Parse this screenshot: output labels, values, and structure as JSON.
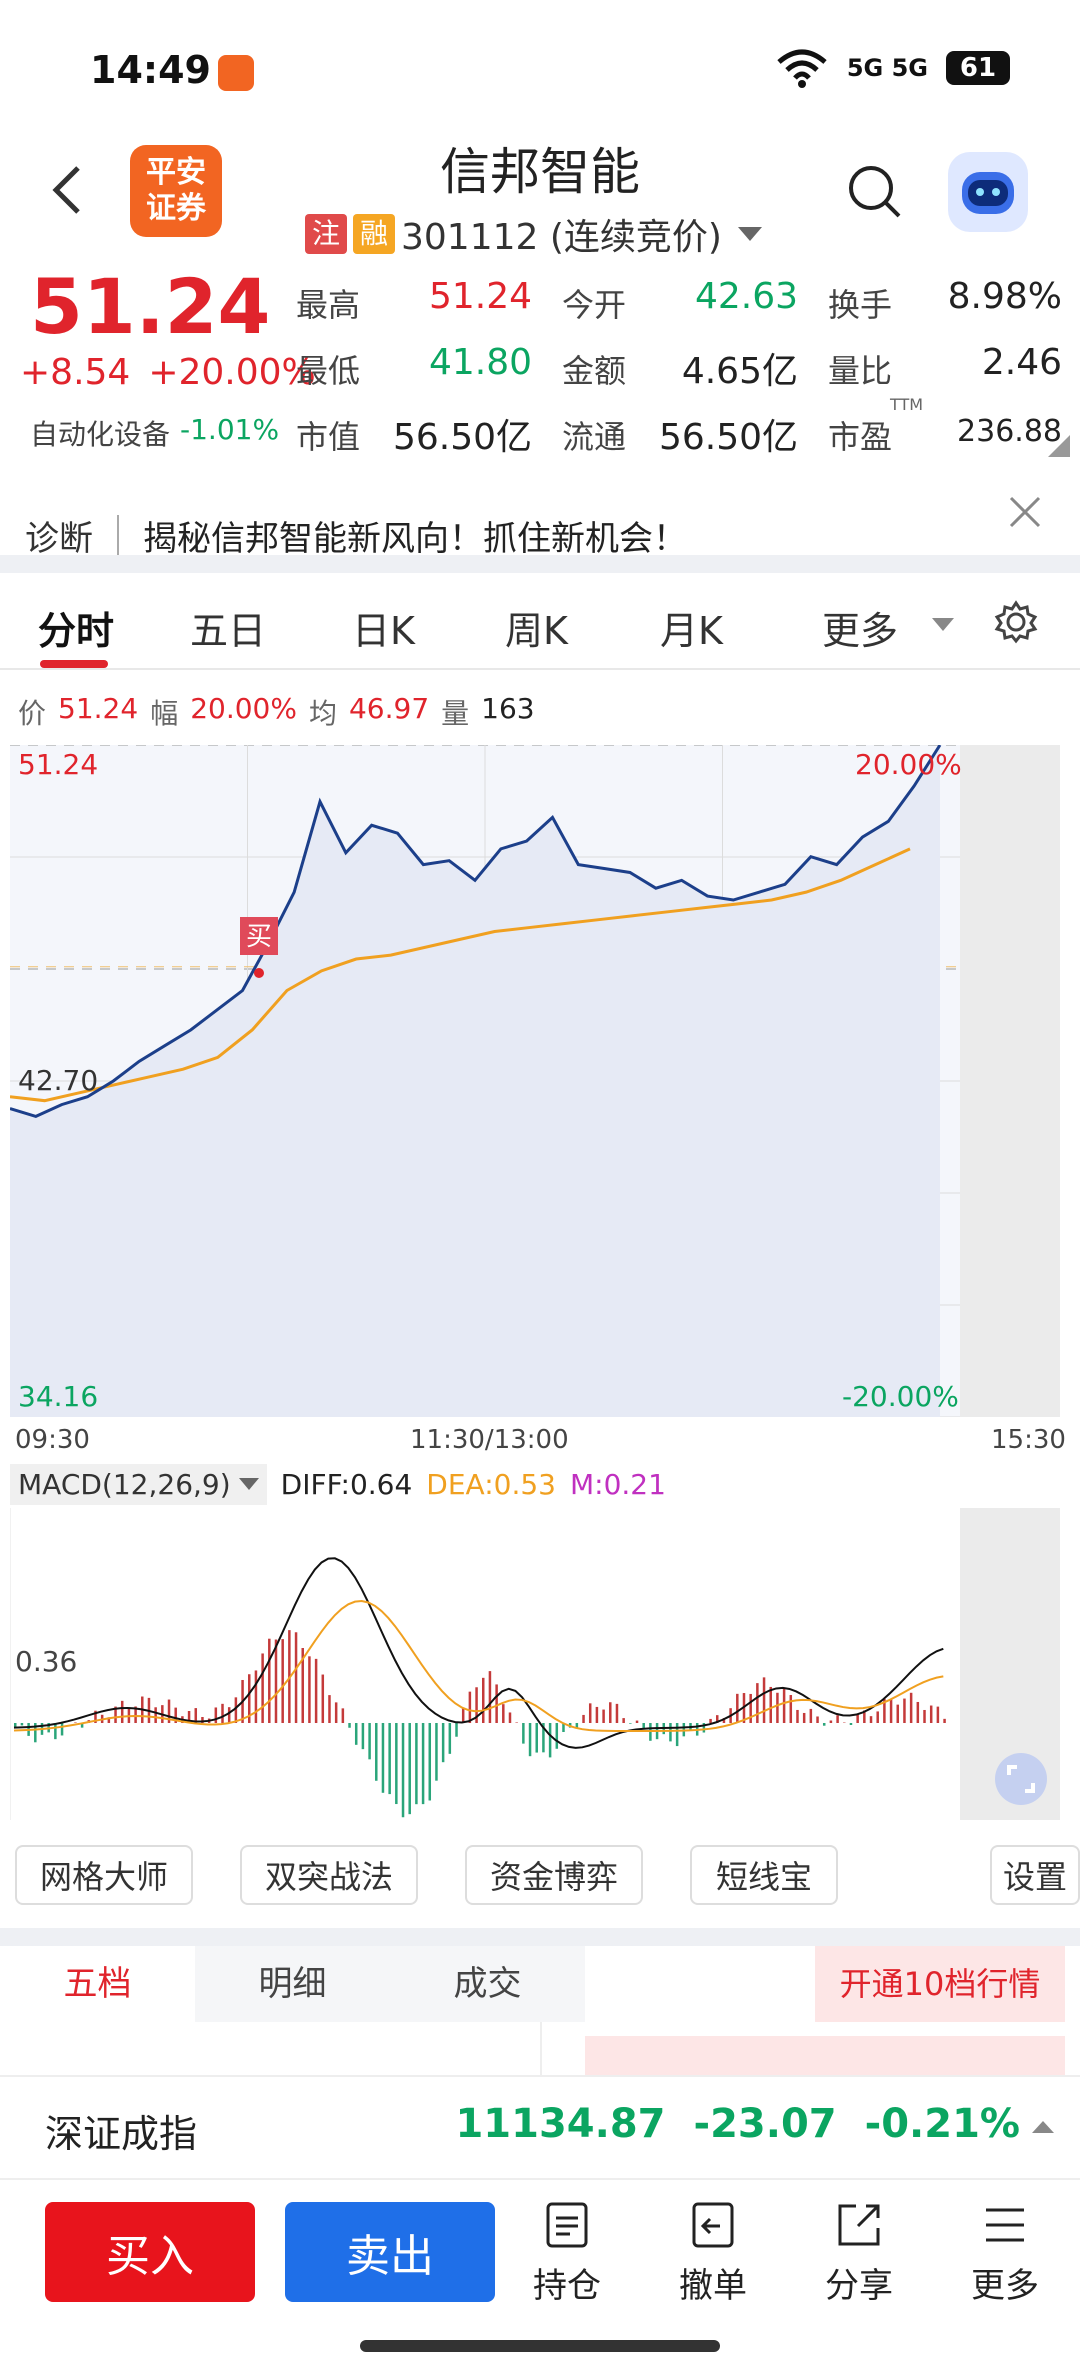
{
  "status_bar": {
    "time": "14:49",
    "network": "5G 5G",
    "battery": "61"
  },
  "header": {
    "broker_logo": "平安\n证券",
    "stock_name": "信邦智能",
    "tag_zhu": "注",
    "tag_rong": "融",
    "code_status": "301112 (连续竞价)"
  },
  "quote": {
    "price": "51.24",
    "change": "+8.54",
    "change_pct": "+20.00%",
    "industry": "自动化设备",
    "industry_pct": "-1.01%",
    "fields": {
      "high_label": "最高",
      "high": "51.24",
      "open_label": "今开",
      "open": "42.63",
      "turnover_label": "换手",
      "turnover": "8.98%",
      "low_label": "最低",
      "low": "41.80",
      "amount_label": "金额",
      "amount": "4.65亿",
      "vol_ratio_label": "量比",
      "vol_ratio": "2.46",
      "mkt_cap_label": "市值",
      "mkt_cap": "56.50亿",
      "float_label": "流通",
      "float": "56.50亿",
      "pe_label": "市盈",
      "pe_ttm": "TTM",
      "pe": "236.88"
    }
  },
  "diagnosis": {
    "label": "诊断",
    "text": "揭秘信邦智能新风向！抓住新机会！"
  },
  "tabs": [
    "分时",
    "五日",
    "日K",
    "周K",
    "月K",
    "更多"
  ],
  "info_line": {
    "price_label": "价",
    "price": "51.24",
    "range_label": "幅",
    "range": "20.00%",
    "avg_label": "均",
    "avg": "46.97",
    "vol_label": "量",
    "vol": "163"
  },
  "chart_data": {
    "type": "line",
    "y_labels": {
      "top": "51.24",
      "mid": "42.70",
      "bottom": "34.16",
      "top_pct": "20.00%",
      "bottom_pct": "-20.00%"
    },
    "x_labels": [
      "09:30",
      "11:30/13:00",
      "15:30"
    ],
    "buy_marker": "买",
    "ylim": [
      34.16,
      51.24
    ],
    "series": [
      {
        "values": [
          42.0,
          41.8,
          42.1,
          42.3,
          42.7,
          43.2,
          43.6,
          44.0,
          44.5,
          45.0,
          46.2,
          47.5,
          49.8,
          48.5,
          49.2,
          49.0,
          48.2,
          48.3,
          47.8,
          48.6,
          48.8,
          49.4,
          48.2,
          48.1,
          48.0,
          47.6,
          47.8,
          47.4,
          47.3,
          47.5,
          47.7,
          48.4,
          48.2,
          48.9,
          49.3,
          50.2,
          51.24
        ]
      },
      {
        "values": [
          42.3,
          42.2,
          42.4,
          42.6,
          42.8,
          43.0,
          43.3,
          44.0,
          45.0,
          45.5,
          45.8,
          45.9,
          46.1,
          46.3,
          46.5,
          46.6,
          46.7,
          46.8,
          46.9,
          47.0,
          47.1,
          47.2,
          47.3,
          47.5,
          47.8,
          48.2,
          48.6
        ]
      }
    ]
  },
  "macd": {
    "label": "MACD(12,26,9)",
    "diff_label": "DIFF:",
    "diff": "0.64",
    "dea_label": "DEA:",
    "dea": "0.53",
    "m_label": "M:",
    "m": "0.21",
    "level": "0.36"
  },
  "tools": [
    "网格大师",
    "双突战法",
    "资金博弈",
    "短线宝",
    "设置"
  ],
  "level_tabs": [
    "五档",
    "明细",
    "成交"
  ],
  "open_10": "开通10档行情",
  "index_bar": {
    "name": "深证成指",
    "value": "11134.87",
    "change": "-23.07",
    "pct": "-0.21%"
  },
  "actions": {
    "buy": "买入",
    "sell": "卖出",
    "position": "持仓",
    "cancel": "撤单",
    "share": "分享",
    "more": "更多"
  },
  "colors": {
    "up": "#e0242c",
    "down": "#0ba561",
    "price_line": "#1c3f8a",
    "avg_line": "#f0a020",
    "buy": "#e8141c",
    "sell": "#1f6fe8"
  }
}
